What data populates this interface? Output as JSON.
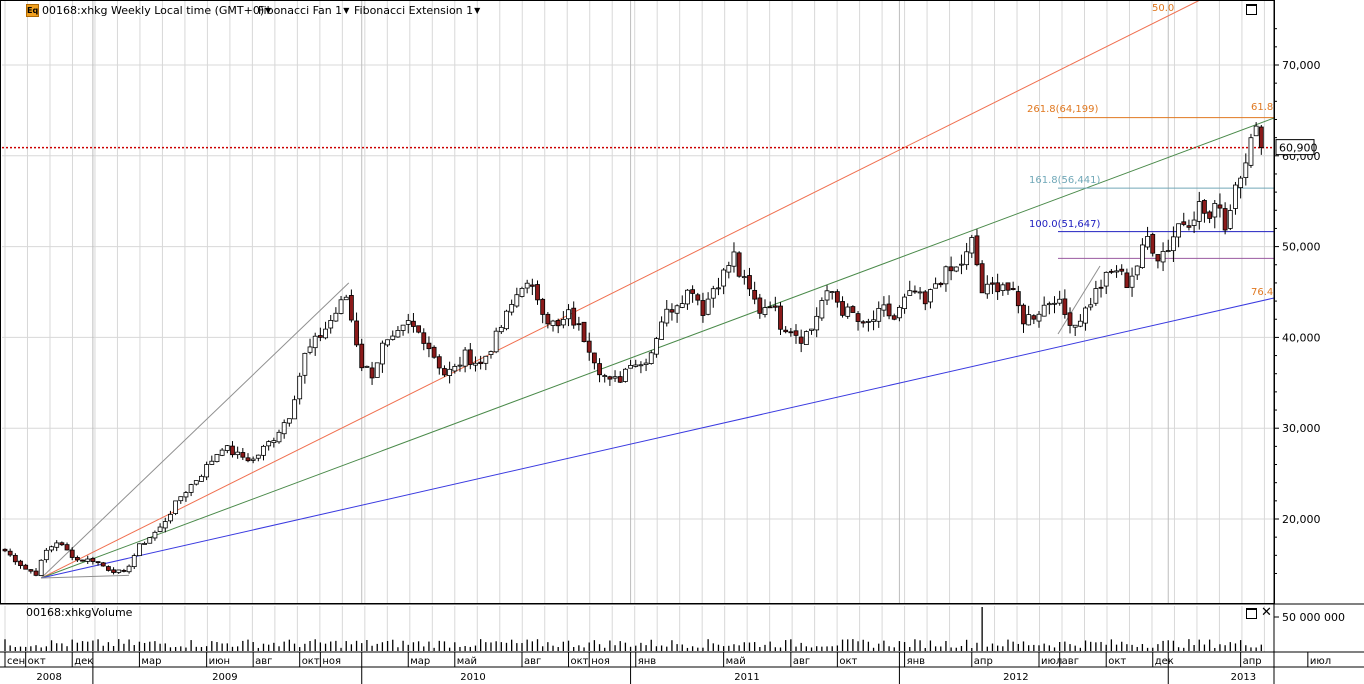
{
  "header": {
    "instrument_label": "00168:xhkg Weekly Local time (GMT+0)",
    "fan_label": "Fibonacci Fan 1",
    "extension_label": "Fibonacci Extension 1",
    "symbol_icon": "Eq"
  },
  "volume_panel": {
    "title": "00168:xhkgVolume",
    "axis_label": "50 000 000"
  },
  "price_axis": {
    "tick_labels": [
      "20,000",
      "30,000",
      "40,000",
      "50,000",
      "60,000",
      "70,000"
    ],
    "last_price_label": "60,900"
  },
  "time_axis": {
    "months": [
      "сен",
      "окт",
      "дек",
      "мар",
      "июн",
      "авг",
      "окт",
      "ноя",
      "мар",
      "май",
      "авг",
      "окт",
      "ноя",
      "янв",
      "май",
      "авг",
      "окт",
      "янв",
      "апр",
      "июл",
      "авг",
      "окт",
      "дек",
      "апр",
      "июл"
    ],
    "years": [
      "2008",
      "2009",
      "2010",
      "2011",
      "2012",
      "2013"
    ]
  },
  "fib_labels": {
    "ext_261": "261.8(64,199)",
    "ext_161": "161.8(56,441)",
    "ext_100": "100.0(51,647)",
    "fan_50": "50.0",
    "fan_618": "61.8",
    "fan_764": "76.4"
  },
  "colors": {
    "up_candle": "#ffffff",
    "down_candle": "#8b1a1a",
    "wick": "#000000",
    "fan_50": "#f07050",
    "fan_618": "#4a8a4a",
    "fan_764": "#3a3ae0",
    "fan_base": "#909090",
    "ext_261": "#e07820",
    "ext_161": "#70a8b8",
    "ext_100": "#2020c0",
    "ext_base": "#9a5aa0",
    "last_price_line": "#cc0000",
    "grid": "#d8d8d8"
  },
  "chart_data": {
    "type": "candlestick",
    "title": "00168:xhkg Weekly",
    "x_unit": "weeks since 2008-09",
    "ylim": [
      12000,
      77000
    ],
    "last_price": 60900,
    "close_anchors": [
      [
        0,
        16500
      ],
      [
        4,
        14500
      ],
      [
        6,
        14000
      ],
      [
        8,
        16500
      ],
      [
        10,
        17500
      ],
      [
        12,
        16500
      ],
      [
        14,
        15500
      ],
      [
        17,
        15500
      ],
      [
        20,
        14500
      ],
      [
        23,
        14000
      ],
      [
        26,
        17000
      ],
      [
        30,
        19000
      ],
      [
        34,
        22500
      ],
      [
        38,
        25000
      ],
      [
        42,
        28000
      ],
      [
        45,
        27000
      ],
      [
        48,
        26500
      ],
      [
        52,
        29000
      ],
      [
        55,
        31500
      ],
      [
        58,
        38000
      ],
      [
        62,
        41000
      ],
      [
        66,
        44500
      ],
      [
        67,
        42000
      ],
      [
        69,
        37000
      ],
      [
        71,
        36000
      ],
      [
        73,
        39000
      ],
      [
        75,
        39500
      ],
      [
        78,
        41500
      ],
      [
        81,
        40000
      ],
      [
        83,
        38000
      ],
      [
        85,
        36000
      ],
      [
        87,
        36500
      ],
      [
        89,
        38000
      ],
      [
        92,
        37000
      ],
      [
        95,
        40000
      ],
      [
        98,
        43500
      ],
      [
        100,
        46000
      ],
      [
        103,
        44500
      ],
      [
        105,
        42000
      ],
      [
        107,
        41000
      ],
      [
        109,
        42500
      ],
      [
        111,
        41000
      ],
      [
        113,
        39000
      ],
      [
        115,
        36500
      ],
      [
        117,
        35000
      ],
      [
        119,
        35500
      ],
      [
        121,
        37500
      ],
      [
        123,
        37000
      ],
      [
        125,
        38500
      ],
      [
        127,
        42000
      ],
      [
        130,
        44000
      ],
      [
        133,
        45500
      ],
      [
        135,
        43000
      ],
      [
        137,
        45500
      ],
      [
        139,
        47000
      ],
      [
        141,
        49000
      ],
      [
        142,
        47000
      ],
      [
        144,
        45000
      ],
      [
        146,
        43000
      ],
      [
        148,
        44000
      ],
      [
        150,
        41500
      ],
      [
        152,
        41000
      ],
      [
        154,
        40000
      ],
      [
        156,
        41000
      ],
      [
        158,
        44000
      ],
      [
        160,
        45000
      ],
      [
        162,
        43000
      ],
      [
        164,
        42500
      ],
      [
        166,
        41000
      ],
      [
        168,
        42000
      ],
      [
        170,
        43000
      ],
      [
        172,
        42000
      ],
      [
        174,
        44000
      ],
      [
        176,
        45000
      ],
      [
        178,
        43500
      ],
      [
        180,
        46000
      ],
      [
        182,
        47000
      ],
      [
        184,
        47500
      ],
      [
        186,
        49000
      ],
      [
        187,
        50500
      ],
      [
        188,
        48000
      ],
      [
        189,
        45000
      ],
      [
        191,
        45500
      ],
      [
        193,
        46000
      ],
      [
        195,
        44500
      ],
      [
        197,
        42000
      ],
      [
        199,
        42500
      ],
      [
        201,
        43500
      ],
      [
        203,
        44500
      ],
      [
        205,
        42500
      ],
      [
        207,
        41500
      ],
      [
        209,
        43000
      ],
      [
        211,
        45000
      ],
      [
        213,
        46500
      ],
      [
        215,
        47500
      ],
      [
        217,
        46000
      ],
      [
        219,
        48000
      ],
      [
        221,
        51000
      ],
      [
        223,
        49000
      ],
      [
        225,
        50000
      ],
      [
        227,
        52500
      ],
      [
        229,
        53000
      ],
      [
        231,
        54500
      ],
      [
        233,
        53000
      ],
      [
        235,
        55000
      ],
      [
        236,
        52000
      ],
      [
        238,
        57000
      ],
      [
        240,
        60000
      ],
      [
        241,
        61500
      ],
      [
        242,
        62500
      ],
      [
        243,
        60900
      ]
    ],
    "volume_spike_week": 189
  }
}
